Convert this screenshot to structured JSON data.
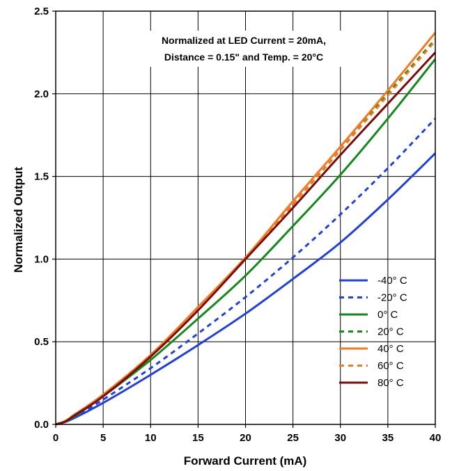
{
  "chart_data": {
    "type": "line",
    "xlabel": "Forward Current (mA)",
    "ylabel": "Normalized Output",
    "xlim": [
      0,
      40
    ],
    "ylim": [
      0,
      2.5
    ],
    "xticks": [
      0,
      5,
      10,
      15,
      20,
      25,
      30,
      35,
      40
    ],
    "yticks": [
      0.0,
      0.5,
      1.0,
      1.5,
      2.0,
      2.5
    ],
    "xtick_labels": [
      "0",
      "5",
      "10",
      "15",
      "20",
      "25",
      "30",
      "35",
      "40"
    ],
    "ytick_labels": [
      "0.0",
      "0.5",
      "1.0",
      "1.5",
      "2.0",
      "2.5"
    ],
    "grid": true,
    "legend_position": "bottom-right",
    "annotation": [
      "Normalized at LED Current = 20mA,",
      "Distance = 0.15\" and Temp. = 20°C"
    ],
    "x": [
      0,
      1,
      2,
      5,
      10,
      15,
      20,
      25,
      30,
      35,
      40
    ],
    "series": [
      {
        "name": "-40° C",
        "color": "#1f3fe0",
        "dash": false,
        "values": [
          0,
          0.015,
          0.04,
          0.13,
          0.3,
          0.48,
          0.67,
          0.88,
          1.1,
          1.36,
          1.64
        ]
      },
      {
        "name": "-20° C",
        "color": "#1f3fe0",
        "dash": true,
        "values": [
          0,
          0.015,
          0.045,
          0.15,
          0.34,
          0.55,
          0.77,
          1.01,
          1.27,
          1.55,
          1.85
        ]
      },
      {
        "name": "0° C",
        "color": "#13891a",
        "dash": false,
        "values": [
          0,
          0.017,
          0.05,
          0.17,
          0.39,
          0.64,
          0.9,
          1.2,
          1.51,
          1.85,
          2.21
        ]
      },
      {
        "name": "20° C",
        "color": "#13891a",
        "dash": true,
        "values": [
          0,
          0.02,
          0.06,
          0.18,
          0.42,
          0.7,
          1.0,
          1.33,
          1.66,
          2.0,
          2.33
        ]
      },
      {
        "name": "40° C",
        "color": "#f47a1f",
        "dash": false,
        "values": [
          0,
          0.02,
          0.06,
          0.18,
          0.42,
          0.71,
          1.01,
          1.35,
          1.68,
          2.02,
          2.37
        ]
      },
      {
        "name": "60° C",
        "color": "#f47a1f",
        "dash": true,
        "values": [
          0,
          0.02,
          0.06,
          0.18,
          0.42,
          0.7,
          1.0,
          1.33,
          1.66,
          1.99,
          2.32
        ]
      },
      {
        "name": "80° C",
        "color": "#7a0b0b",
        "dash": false,
        "values": [
          0,
          0.017,
          0.055,
          0.17,
          0.41,
          0.69,
          1.0,
          1.31,
          1.63,
          1.94,
          2.25
        ]
      }
    ]
  }
}
